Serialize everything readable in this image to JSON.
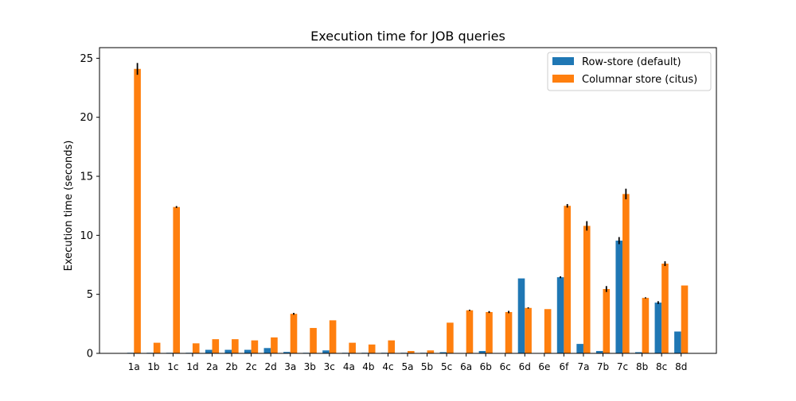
{
  "chart_data": {
    "type": "bar",
    "title": "Execution time for JOB queries",
    "xlabel": "",
    "ylabel": "Execution time (seconds)",
    "ylim": [
      0,
      25.9
    ],
    "yticks": [
      0,
      5,
      10,
      15,
      20,
      25
    ],
    "grid": false,
    "legend_position": "top-right",
    "categories": [
      "1a",
      "1b",
      "1c",
      "1d",
      "2a",
      "2b",
      "2c",
      "2d",
      "3a",
      "3b",
      "3c",
      "4a",
      "4b",
      "4c",
      "5a",
      "5b",
      "5c",
      "6a",
      "6b",
      "6c",
      "6d",
      "6e",
      "6f",
      "7a",
      "7b",
      "7c",
      "8b",
      "8c",
      "8d"
    ],
    "series": [
      {
        "name": "Row-store (default)",
        "color": "#1f77b4",
        "values": [
          0.05,
          0.05,
          0.05,
          0.05,
          0.3,
          0.3,
          0.3,
          0.45,
          0.12,
          0.05,
          0.25,
          0.05,
          0.05,
          0.05,
          0.05,
          0.05,
          0.1,
          0.02,
          0.2,
          0.02,
          6.35,
          0.02,
          6.45,
          0.8,
          0.2,
          9.55,
          0.1,
          4.3,
          1.85
        ],
        "errors": [
          0,
          0,
          0,
          0,
          0,
          0,
          0,
          0,
          0,
          0,
          0,
          0,
          0,
          0,
          0,
          0,
          0,
          0,
          0,
          0,
          0,
          0,
          0.08,
          0,
          0,
          0.3,
          0,
          0.12,
          0
        ]
      },
      {
        "name": "Columnar store (citus)",
        "color": "#ff7f0e",
        "values": [
          24.1,
          0.9,
          12.4,
          0.85,
          1.2,
          1.2,
          1.1,
          1.35,
          3.35,
          2.15,
          2.8,
          0.9,
          0.75,
          1.1,
          0.2,
          0.25,
          2.6,
          3.65,
          3.5,
          3.5,
          3.85,
          3.75,
          12.5,
          10.8,
          5.45,
          13.5,
          4.7,
          7.6,
          5.75
        ],
        "errors": [
          0.5,
          0,
          0.08,
          0,
          0,
          0,
          0,
          0,
          0.08,
          0,
          0,
          0,
          0,
          0,
          0,
          0,
          0,
          0.05,
          0.08,
          0.1,
          0.05,
          0,
          0.15,
          0.4,
          0.25,
          0.45,
          0.05,
          0.2,
          0
        ]
      }
    ]
  }
}
